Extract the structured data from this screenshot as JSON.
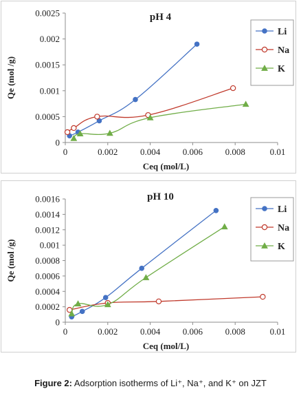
{
  "chart_data": [
    {
      "type": "line",
      "title": "pH 4",
      "xlabel": "Ceq (mol/L)",
      "ylabel": "Qe (mol /g)",
      "xlim": [
        0,
        0.01
      ],
      "ylim": [
        0,
        0.0025
      ],
      "xticks": [
        "0",
        "0.002",
        "0.004",
        "0.006",
        "0.008",
        "0.01"
      ],
      "yticks": [
        "0",
        "0.0005",
        "0.001",
        "0.0015",
        "0.002",
        "0.0025"
      ],
      "legend": "top-right",
      "grid": false,
      "series": [
        {
          "name": "Li",
          "color": "#4472c4",
          "marker": "circle-filled",
          "points": [
            [
              0.0002,
              0.00013
            ],
            [
              0.0006,
              0.0002
            ],
            [
              0.0016,
              0.00042
            ],
            [
              0.0033,
              0.00083
            ],
            [
              0.0062,
              0.0019
            ]
          ]
        },
        {
          "name": "Na",
          "color": "#c0392b",
          "marker": "circle-open",
          "points": [
            [
              0.0001,
              0.0002
            ],
            [
              0.0004,
              0.00028
            ],
            [
              0.0015,
              0.0005
            ],
            [
              0.0039,
              0.00053
            ],
            [
              0.0079,
              0.00105
            ]
          ]
        },
        {
          "name": "K",
          "color": "#70ad47",
          "marker": "triangle",
          "points": [
            [
              0.0004,
              8e-05
            ],
            [
              0.0007,
              0.00017
            ],
            [
              0.0021,
              0.00018
            ],
            [
              0.004,
              0.00048
            ],
            [
              0.0085,
              0.00074
            ]
          ]
        }
      ]
    },
    {
      "type": "line",
      "title": "pH 10",
      "xlabel": "Ceq (mol/L)",
      "ylabel": "Qe (mol /g)",
      "xlim": [
        0,
        0.01
      ],
      "ylim": [
        0,
        0.0016
      ],
      "xticks": [
        "0",
        "0.002",
        "0.004",
        "0.006",
        "0.008",
        "0.01"
      ],
      "yticks": [
        "0",
        "0.0002",
        "0.0004",
        "0.0006",
        "0.0008",
        "0.001",
        "0.0012",
        "0.0014",
        "0.0016"
      ],
      "legend": "top-right",
      "grid": false,
      "series": [
        {
          "name": "Li",
          "color": "#4472c4",
          "marker": "circle-filled",
          "points": [
            [
              0.0003,
              7e-05
            ],
            [
              0.0008,
              0.00014
            ],
            [
              0.0019,
              0.00032
            ],
            [
              0.0036,
              0.0007
            ],
            [
              0.0071,
              0.00145
            ]
          ]
        },
        {
          "name": "Na",
          "color": "#c0392b",
          "marker": "circle-open",
          "points": [
            [
              0.0002,
              0.00016
            ],
            [
              0.002,
              0.00025
            ],
            [
              0.0044,
              0.00027
            ],
            [
              0.0093,
              0.00033
            ]
          ]
        },
        {
          "name": "K",
          "color": "#70ad47",
          "marker": "triangle",
          "points": [
            [
              0.0003,
              0.00011
            ],
            [
              0.0006,
              0.00024
            ],
            [
              0.002,
              0.00023
            ],
            [
              0.0038,
              0.00058
            ],
            [
              0.0075,
              0.00124
            ]
          ]
        }
      ]
    }
  ],
  "caption": {
    "label": "Figure 2:",
    "text": " Adsorption isotherms of Li⁺, Na⁺, and K⁺ on JZT"
  }
}
